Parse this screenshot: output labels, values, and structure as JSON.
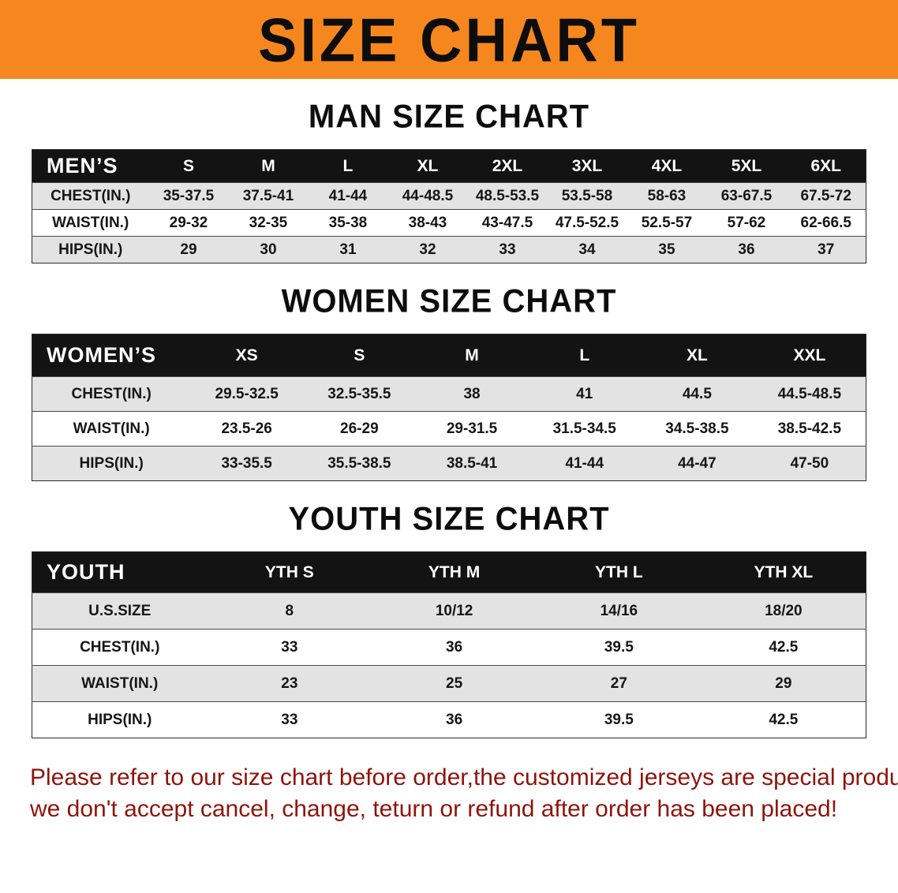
{
  "banner": {
    "title": "SIZE CHART"
  },
  "colors": {
    "banner_bg": "#f6871f",
    "table_header_bg": "#131313",
    "row_alt_bg": "#e3e3e3",
    "footer_text": "#8e140c"
  },
  "sections": [
    {
      "heading": "MAN SIZE CHART",
      "header": [
        "MEN’S",
        "S",
        "M",
        "L",
        "XL",
        "2XL",
        "3XL",
        "4XL",
        "5XL",
        "6XL"
      ],
      "rows": [
        [
          "CHEST(IN.)",
          "35-37.5",
          "37.5-41",
          "41-44",
          "44-48.5",
          "48.5-53.5",
          "53.5-58",
          "58-63",
          "63-67.5",
          "67.5-72"
        ],
        [
          "WAIST(IN.)",
          "29-32",
          "32-35",
          "35-38",
          "38-43",
          "43-47.5",
          "47.5-52.5",
          "52.5-57",
          "57-62",
          "62-66.5"
        ],
        [
          "HIPS(IN.)",
          "29",
          "30",
          "31",
          "32",
          "33",
          "34",
          "35",
          "36",
          "37"
        ]
      ]
    },
    {
      "heading": "WOMEN SIZE CHART",
      "header": [
        "WOMEN’S",
        "XS",
        "S",
        "M",
        "L",
        "XL",
        "XXL"
      ],
      "rows": [
        [
          "CHEST(IN.)",
          "29.5-32.5",
          "32.5-35.5",
          "38",
          "41",
          "44.5",
          "44.5-48.5"
        ],
        [
          "WAIST(IN.)",
          "23.5-26",
          "26-29",
          "29-31.5",
          "31.5-34.5",
          "34.5-38.5",
          "38.5-42.5"
        ],
        [
          "HIPS(IN.)",
          "33-35.5",
          "35.5-38.5",
          "38.5-41",
          "41-44",
          "44-47",
          "47-50"
        ]
      ]
    },
    {
      "heading": "YOUTH SIZE CHART",
      "header": [
        "YOUTH",
        "YTH S",
        "YTH M",
        "YTH L",
        "YTH XL"
      ],
      "rows": [
        [
          "U.S.SIZE",
          "8",
          "10/12",
          "14/16",
          "18/20"
        ],
        [
          "CHEST(IN.)",
          "33",
          "36",
          "39.5",
          "42.5"
        ],
        [
          "WAIST(IN.)",
          "23",
          "25",
          "27",
          "29"
        ],
        [
          "HIPS(IN.)",
          "33",
          "36",
          "39.5",
          "42.5"
        ]
      ]
    }
  ],
  "footer": {
    "line1": "Please refer to our size chart before order,the customized jerseys are special products,",
    "line2": "we don't accept cancel, change, teturn or refund after order has been placed!"
  }
}
